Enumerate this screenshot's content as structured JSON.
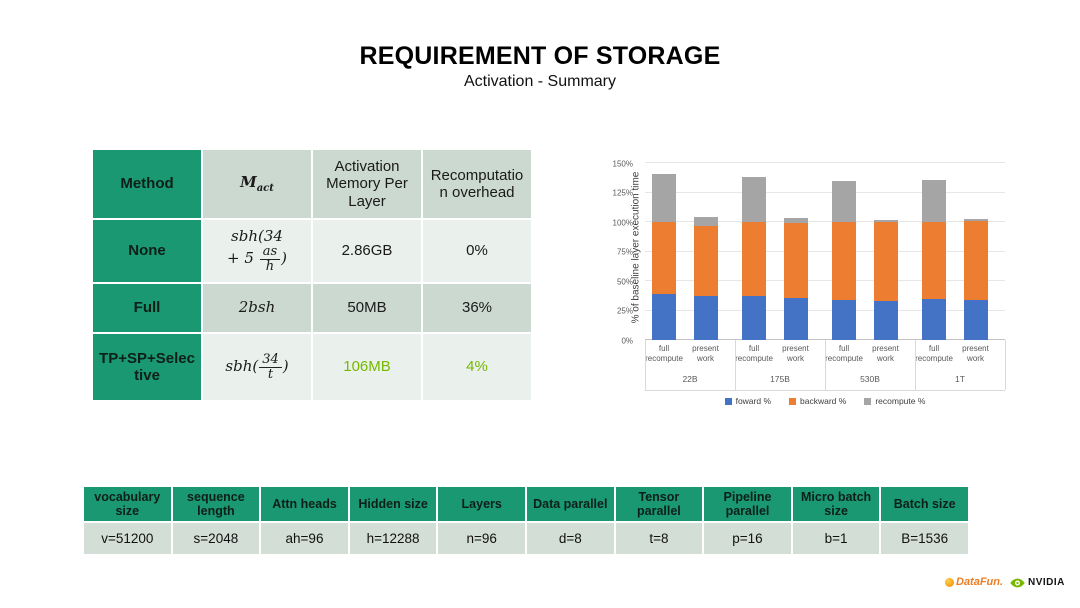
{
  "slide": {
    "title": "REQUIREMENT OF STORAGE",
    "subtitle": "Activation - Summary"
  },
  "colors": {
    "dark_green": "#199872",
    "sage": "#ccd9d1",
    "pale": "#eaf0ec",
    "accent_green": "#76b900",
    "bar_blue": "#4472c4",
    "bar_orange": "#ed7d31",
    "bar_gray": "#a5a5a5"
  },
  "storage_table": {
    "headers": {
      "method": "Method",
      "mact_main": "M",
      "mact_sub": "act",
      "memory": "Activation Memory Per Layer",
      "overhead": "Recomputation overhead"
    },
    "rows": [
      {
        "method": "None",
        "formula": {
          "line1": "sbh(34",
          "line2_pre": "+ 5",
          "num": "as",
          "den": "h",
          "close": ")"
        },
        "memory": "2.86GB",
        "overhead": "0%"
      },
      {
        "method": "Full",
        "formula": {
          "text": "2bsh"
        },
        "memory": "50MB",
        "overhead": "36%"
      },
      {
        "method": "TP+SP+Selective",
        "formula": {
          "pre": "sbh(",
          "num": "34",
          "den": "t",
          "close": ")"
        },
        "memory": "106MB",
        "overhead": "4%"
      }
    ]
  },
  "chart_data": {
    "type": "bar",
    "subtype": "stacked",
    "ylabel": "% of baseline layer execution time",
    "ylim": [
      0,
      150
    ],
    "ytick_step": 25,
    "yticks": [
      "0%",
      "25%",
      "50%",
      "75%",
      "100%",
      "125%",
      "150%"
    ],
    "grid": true,
    "legend_position": "bottom",
    "groups": [
      "22B",
      "175B",
      "530B",
      "1T"
    ],
    "bar_labels": [
      "full recompute",
      "present work"
    ],
    "series": [
      {
        "name": "foward %",
        "color": "#4472c4",
        "values": [
          39,
          37,
          37,
          36,
          34,
          33,
          35,
          34
        ]
      },
      {
        "name": "backward %",
        "color": "#ed7d31",
        "values": [
          61,
          60,
          63,
          63,
          66,
          67,
          65,
          67
        ]
      },
      {
        "name": "recompute %",
        "color": "#a5a5a5",
        "values": [
          41,
          7,
          38,
          4,
          35,
          2,
          36,
          1.5
        ]
      }
    ],
    "stack_totals": [
      141,
      104,
      138,
      103,
      135,
      102,
      136,
      102.5
    ]
  },
  "params_table": {
    "columns": [
      {
        "header": "vocabulary size",
        "value": "v=51200"
      },
      {
        "header": "sequence length",
        "value": "s=2048"
      },
      {
        "header": "Attn heads",
        "value": "ah=96"
      },
      {
        "header": "Hidden size",
        "value": "h=12288"
      },
      {
        "header": "Layers",
        "value": "n=96"
      },
      {
        "header": "Data parallel",
        "value": "d=8"
      },
      {
        "header": "Tensor parallel",
        "value": "t=8"
      },
      {
        "header": "Pipeline parallel",
        "value": "p=16"
      },
      {
        "header": "Micro batch size",
        "value": "b=1"
      },
      {
        "header": "Batch size",
        "value": "B=1536"
      }
    ]
  },
  "logos": {
    "datafun": "DataFun.",
    "nvidia": "NVIDIA"
  }
}
